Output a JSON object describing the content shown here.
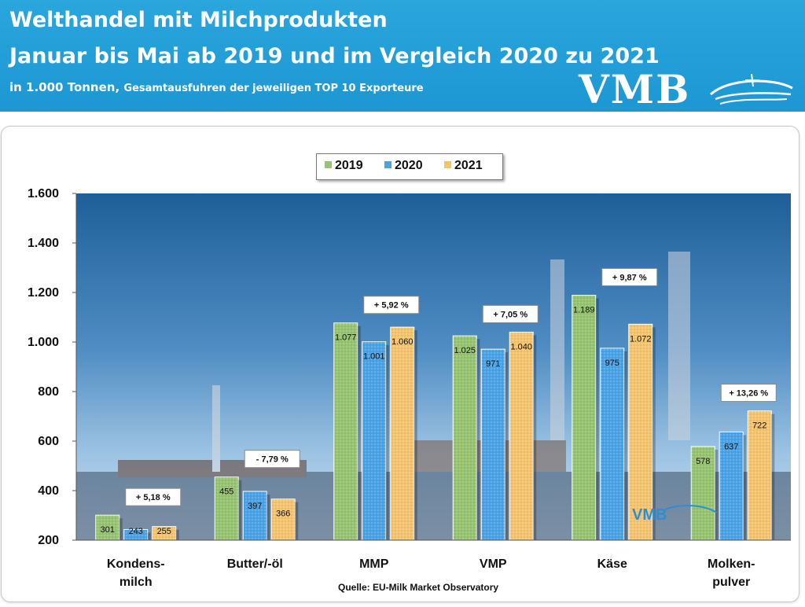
{
  "header": {
    "title_line1": "Welthandel mit Milchprodukten",
    "title_line2": "Januar bis Mai ab 2019 und im Vergleich 2020 zu 2021",
    "subtitle_unit": "in 1.000 Tonnen,",
    "subtitle_desc": "Gesamtausfuhren der jeweiligen TOP 10 Exporteure",
    "logo_text": "VMB",
    "banner_color": "#1d98d4"
  },
  "source": "Quelle: EU-Milk Market Observatory",
  "chart_data": {
    "type": "bar",
    "categories": [
      [
        "Kondens-",
        "milch"
      ],
      [
        "Butter/-öl"
      ],
      [
        "MMP"
      ],
      [
        "VMP"
      ],
      [
        "Käse"
      ],
      [
        "Molken-",
        "pulver"
      ]
    ],
    "series": [
      {
        "name": "2019",
        "color": "#97c470",
        "values": [
          301,
          455,
          1077,
          1025,
          1189,
          578
        ],
        "labels": [
          "301",
          "455",
          "1.077",
          "1.025",
          "1.189",
          "578"
        ]
      },
      {
        "name": "2020",
        "color": "#4aa3e6",
        "values": [
          243,
          397,
          1001,
          971,
          975,
          637
        ],
        "labels": [
          "243",
          "397",
          "1.001",
          "971",
          "975",
          "637"
        ]
      },
      {
        "name": "2021",
        "color": "#f5c46e",
        "values": [
          255,
          366,
          1060,
          1040,
          1072,
          722
        ],
        "labels": [
          "255",
          "366",
          "1.060",
          "1.040",
          "1.072",
          "722"
        ]
      }
    ],
    "changes": [
      "+ 5,18 %",
      "- 7,79 %",
      "+ 5,92 %",
      "+ 7,05 %",
      "+ 9,87 %",
      "+ 13,26 %"
    ],
    "y_ticks": [
      "200",
      "400",
      "600",
      "800",
      "1.000",
      "1.200",
      "1.400",
      "1.600"
    ],
    "ylim": [
      200,
      1600
    ],
    "legend_position": "top-center",
    "grid": false
  }
}
